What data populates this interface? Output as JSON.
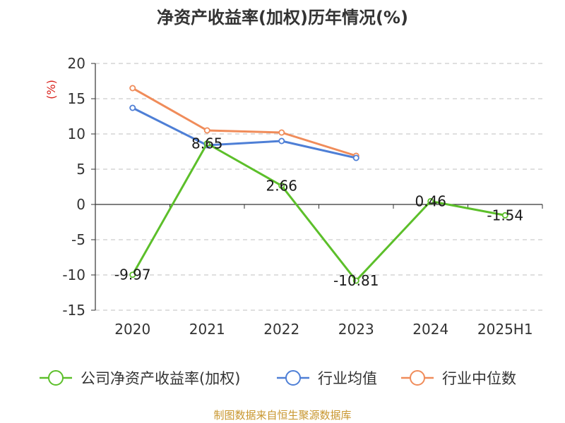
{
  "chart_data": {
    "type": "line",
    "title": "净资产收益率(加权)历年情况(%)",
    "ylabel": "(%)",
    "categories": [
      "2020",
      "2021",
      "2022",
      "2023",
      "2024",
      "2025H1"
    ],
    "ylim": [
      -15,
      20
    ],
    "yticks": [
      20,
      15,
      10,
      5,
      0,
      -5,
      -10,
      -15
    ],
    "ytick_labels": [
      "20",
      "15",
      "10",
      "5",
      "0",
      "-5",
      "-10",
      "-15"
    ],
    "grid": true,
    "legend_position": "bottom",
    "series": [
      {
        "name": "公司净资产收益率(加权)",
        "color": "#5cbf2a",
        "values": [
          -9.97,
          8.65,
          2.66,
          -10.81,
          0.46,
          -1.54
        ],
        "labels": [
          "-9.97",
          "8.65",
          "2.66",
          "-10.81",
          "0.46",
          "-1.54"
        ]
      },
      {
        "name": "行业均值",
        "color": "#4e7fd6",
        "values": [
          13.7,
          8.4,
          9.0,
          6.6,
          null,
          null
        ]
      },
      {
        "name": "行业中位数",
        "color": "#f08c5a",
        "values": [
          16.5,
          10.5,
          10.2,
          6.9,
          null,
          null
        ]
      }
    ]
  },
  "source": "制图数据来自恒生聚源数据库"
}
